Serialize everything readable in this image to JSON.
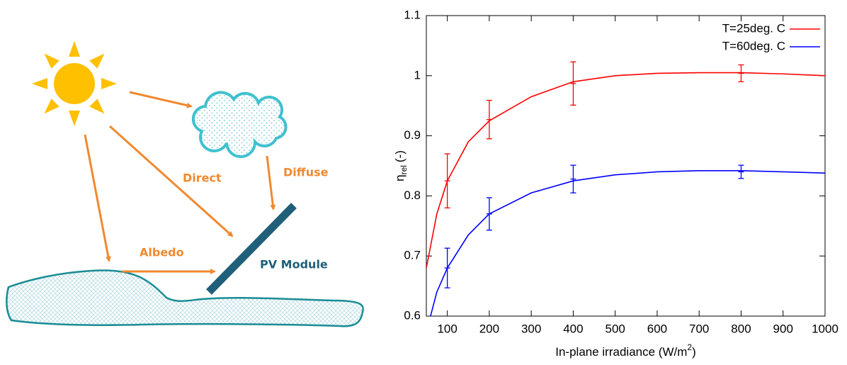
{
  "diagram": {
    "direct": "Direct",
    "diffuse": "Diffuse",
    "albedo": "Albedo",
    "module": "PV Module"
  },
  "chart_data": {
    "type": "line",
    "xlabel": {
      "text": "In-plane irradiance (W/m",
      "superscript": "2",
      "suffix": ")"
    },
    "ylabel": {
      "symbol": "η",
      "subscript": "rel",
      "unit": "(-)"
    },
    "xlim": [
      50,
      1000
    ],
    "xticks": [
      100,
      200,
      300,
      400,
      500,
      600,
      700,
      800,
      900,
      1000
    ],
    "ylim": [
      0.6,
      1.1
    ],
    "yticks": [
      0.6,
      0.7,
      0.8,
      0.9,
      1,
      1.1
    ],
    "grid": false,
    "legend": "upper right",
    "series": [
      {
        "name": "T=25deg. C",
        "color": "#ff0000",
        "x": [
          50,
          75,
          100,
          150,
          200,
          300,
          400,
          500,
          600,
          700,
          800,
          900,
          1000
        ],
        "values": [
          0.68,
          0.77,
          0.825,
          0.89,
          0.925,
          0.965,
          0.99,
          1.0,
          1.004,
          1.005,
          1.005,
          1.003,
          1.0
        ],
        "points": {
          "x": [
            100,
            200,
            400,
            800
          ],
          "values": [
            0.825,
            0.927,
            0.987,
            1.004
          ],
          "errors": [
            0.045,
            0.032,
            0.036,
            0.014
          ]
        }
      },
      {
        "name": "T=60deg. C",
        "color": "#0000ff",
        "x": [
          60,
          75,
          100,
          150,
          200,
          300,
          400,
          500,
          600,
          700,
          800,
          900,
          1000
        ],
        "values": [
          0.6,
          0.64,
          0.68,
          0.735,
          0.77,
          0.805,
          0.825,
          0.835,
          0.84,
          0.842,
          0.842,
          0.84,
          0.838
        ],
        "points": {
          "x": [
            100,
            200,
            400,
            800
          ],
          "values": [
            0.68,
            0.77,
            0.828,
            0.84
          ],
          "errors": [
            0.033,
            0.027,
            0.023,
            0.011
          ]
        }
      }
    ]
  }
}
